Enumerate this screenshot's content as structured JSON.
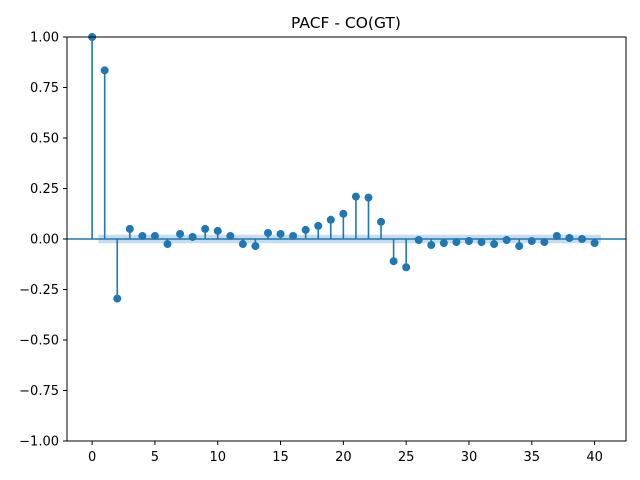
{
  "chart_data": {
    "type": "stem",
    "title": "PACF - CO(GT)",
    "xlabel": "",
    "ylabel": "",
    "xlim": [
      -2,
      42.5
    ],
    "ylim": [
      -1.0,
      1.0
    ],
    "x_ticks": [
      0,
      5,
      10,
      15,
      20,
      25,
      30,
      35,
      40
    ],
    "x_tick_labels": [
      "0",
      "5",
      "10",
      "15",
      "20",
      "25",
      "30",
      "35",
      "40"
    ],
    "y_ticks": [
      -1.0,
      -0.75,
      -0.5,
      -0.25,
      0.0,
      0.25,
      0.5,
      0.75,
      1.0
    ],
    "y_tick_labels": [
      "−1.00",
      "−0.75",
      "−0.50",
      "−0.25",
      "0.00",
      "0.25",
      "0.50",
      "0.75",
      "1.00"
    ],
    "lags": [
      0,
      1,
      2,
      3,
      4,
      5,
      6,
      7,
      8,
      9,
      10,
      11,
      12,
      13,
      14,
      15,
      16,
      17,
      18,
      19,
      20,
      21,
      22,
      23,
      24,
      25,
      26,
      27,
      28,
      29,
      30,
      31,
      32,
      33,
      34,
      35,
      36,
      37,
      38,
      39,
      40
    ],
    "values": [
      1.0,
      0.835,
      -0.295,
      0.05,
      0.015,
      0.015,
      -0.025,
      0.025,
      0.01,
      0.05,
      0.04,
      0.015,
      -0.025,
      -0.035,
      0.03,
      0.025,
      0.015,
      0.045,
      0.065,
      0.095,
      0.125,
      0.21,
      0.205,
      0.085,
      -0.11,
      -0.14,
      -0.005,
      -0.03,
      -0.02,
      -0.015,
      -0.01,
      -0.015,
      -0.025,
      -0.005,
      -0.035,
      -0.01,
      -0.015,
      0.015,
      0.005,
      0.0,
      -0.02
    ],
    "confidence_band": {
      "x_range": [
        0.5,
        40.5
      ],
      "lower": -0.021,
      "upper": 0.021
    },
    "colors": {
      "stem": "#1f77b4",
      "band": "#1f77b4",
      "axis": "#000000"
    },
    "grid": false
  }
}
